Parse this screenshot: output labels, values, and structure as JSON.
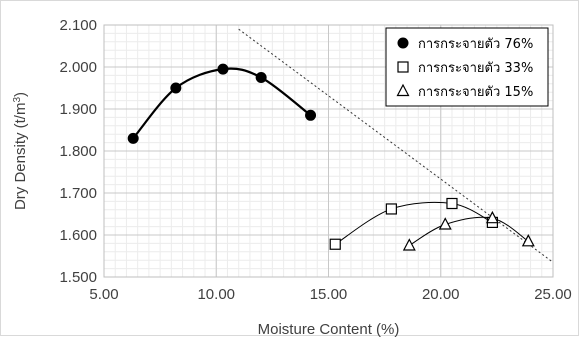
{
  "chart_data": {
    "type": "scatter",
    "xlabel": "Moisture Content (%)",
    "ylabel": "Dry Density (t/m",
    "ylabel_sup": "3",
    "ylabel_tail": ")",
    "xlim": [
      5.0,
      25.0
    ],
    "ylim": [
      1.5,
      2.1
    ],
    "x_ticks": [
      "5.00",
      "10.00",
      "15.00",
      "20.00",
      "25.00"
    ],
    "y_ticks": [
      "1.500",
      "1.600",
      "1.700",
      "1.800",
      "1.900",
      "2.000",
      "2.100"
    ],
    "grid": true,
    "legend_position": "top-right",
    "series": [
      {
        "name": "การกระจายตัว 76%",
        "marker": "filled-circle",
        "color": "#000000",
        "x": [
          6.3,
          8.2,
          10.3,
          12.0,
          14.2
        ],
        "y": [
          1.83,
          1.95,
          1.995,
          1.975,
          1.885
        ]
      },
      {
        "name": "การกระจายตัว 33%",
        "marker": "open-square",
        "color": "#000000",
        "x": [
          15.3,
          17.8,
          20.5,
          22.3
        ],
        "y": [
          1.578,
          1.662,
          1.675,
          1.63
        ]
      },
      {
        "name": "การกระจายตัว 15%",
        "marker": "open-triangle",
        "color": "#000000",
        "x": [
          18.6,
          20.2,
          22.3,
          23.9
        ],
        "y": [
          1.575,
          1.625,
          1.64,
          1.585
        ]
      }
    ],
    "zero_air_voids_line": {
      "style": "dotted",
      "x": [
        11.0,
        25.0
      ],
      "y": [
        2.09,
        1.535
      ]
    }
  }
}
